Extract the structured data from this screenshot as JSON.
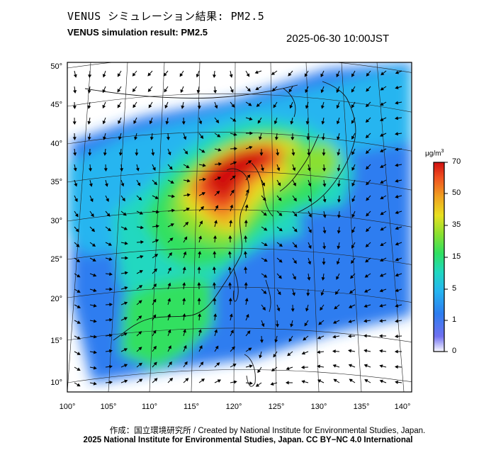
{
  "title": {
    "japanese": "VENUS シミュレーション結果: PM2.5",
    "english": "VENUS simulation result: PM2.5",
    "timestamp": "2025-06-30 10:00JST"
  },
  "map": {
    "region": "East Asia",
    "lon_labels": [
      "100°",
      "105°",
      "110°",
      "115°",
      "120°",
      "125°",
      "130°",
      "135°",
      "140°"
    ],
    "lat_labels": [
      "50°",
      "45°",
      "40°",
      "35°",
      "30°",
      "25°",
      "20°",
      "15°",
      "10°"
    ],
    "lon_range": [
      100,
      140
    ],
    "lat_range": [
      10,
      50
    ]
  },
  "colorbar": {
    "unit_prefix": "μg/m",
    "unit_exp": "3",
    "labels": [
      "70",
      "50",
      "35",
      "15",
      "5",
      "1",
      "0"
    ],
    "colors": [
      "#f8f8ff",
      "#6a6af0",
      "#2d7df0",
      "#25b5f0",
      "#20d8c0",
      "#30e060",
      "#8ae030",
      "#e8e020",
      "#f0a020",
      "#f05020",
      "#d01010"
    ]
  },
  "credits": {
    "line1": "作成：国立環境研究所 / Created by National Institute for Environmental Studies, Japan.",
    "line2": "2025 National Institute for Environmental Studies, Japan. CC BY−NC 4.0 International"
  }
}
